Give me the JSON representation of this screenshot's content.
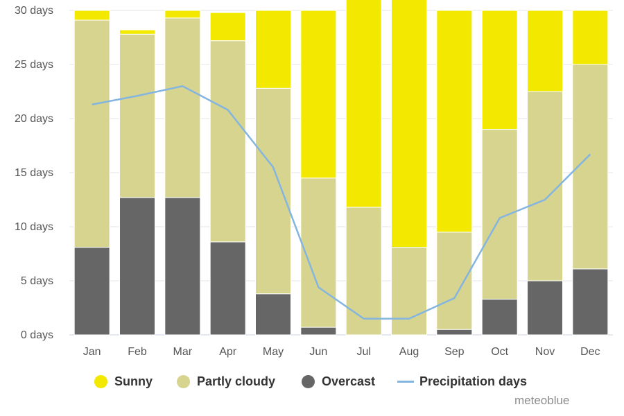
{
  "chart_data": {
    "type": "bar",
    "stacked": true,
    "categories": [
      "Jan",
      "Feb",
      "Mar",
      "Apr",
      "May",
      "Jun",
      "Jul",
      "Aug",
      "Sep",
      "Oct",
      "Nov",
      "Dec"
    ],
    "series": [
      {
        "name": "Overcast",
        "values": [
          8.1,
          12.7,
          12.7,
          8.6,
          3.8,
          0.7,
          0.0,
          0.0,
          0.5,
          3.3,
          5.0,
          6.1
        ],
        "color": "#666666"
      },
      {
        "name": "Partly cloudy",
        "values": [
          21.0,
          15.1,
          16.6,
          18.6,
          19.0,
          13.8,
          11.8,
          8.1,
          9.0,
          15.7,
          17.5,
          18.9
        ],
        "color": "#d6d48f"
      },
      {
        "name": "Sunny",
        "values": [
          0.9,
          0.4,
          0.7,
          2.6,
          7.2,
          15.5,
          19.2,
          22.9,
          20.5,
          11.0,
          7.5,
          5.0
        ],
        "color": "#f3e900"
      }
    ],
    "line_series": {
      "name": "Precipitation days",
      "values": [
        21.3,
        22.1,
        23.0,
        20.8,
        15.5,
        4.4,
        1.5,
        1.5,
        3.4,
        10.8,
        12.5,
        16.7
      ],
      "color": "#84b5e0"
    },
    "y_ticks": [
      "0 days",
      "5 days",
      "10 days",
      "15 days",
      "20 days",
      "25 days",
      "30 days"
    ],
    "ylim": [
      0,
      30
    ],
    "grid": true,
    "legend_position": "bottom",
    "title": "",
    "xlabel": "",
    "ylabel": ""
  },
  "legend": {
    "sunny": "Sunny",
    "partly_cloudy": "Partly cloudy",
    "overcast": "Overcast",
    "precipitation": "Precipitation days"
  },
  "credit": "meteoblue"
}
